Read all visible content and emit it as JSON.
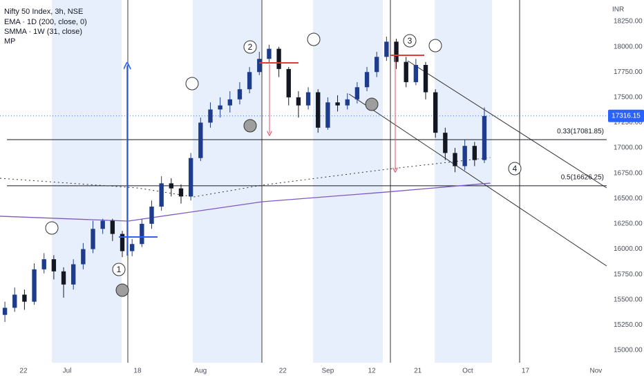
{
  "chart_data": {
    "type": "candlestick",
    "title": "Nifty 50 Index, 3h, NSE",
    "indicator": "MP",
    "y_axis_label": "INR",
    "up_color": "#1e3c8c",
    "down_color": "#131722",
    "x": [
      0.5,
      1.5,
      2.5,
      3.5,
      4.5,
      5.5,
      6.5,
      7.5,
      8.5,
      9.5,
      10.5,
      11.5,
      12.5,
      13.5,
      14.5,
      15.5,
      16.5,
      17.5,
      18.5,
      19.5,
      20.5,
      21.5,
      22.5,
      23.5,
      24.5,
      25.5,
      26.5,
      27.5,
      28.5,
      29.5,
      30.5,
      31.5,
      32.5,
      33.5,
      34.5,
      35.5,
      36.5,
      37.5,
      38.5,
      39.5,
      40.5,
      41.5,
      42.5,
      43.5,
      44.5,
      45.5,
      46.5,
      47.5,
      48.5,
      49.5
    ],
    "open": [
      15350,
      15420,
      15550,
      15480,
      15800,
      15900,
      15780,
      15650,
      15850,
      16000,
      16200,
      16280,
      16150,
      15980,
      16050,
      16250,
      16420,
      16650,
      16600,
      16520,
      16900,
      17250,
      17380,
      17420,
      17480,
      17580,
      17750,
      17880,
      17980,
      17780,
      17500,
      17420,
      17550,
      17200,
      17450,
      17420,
      17480,
      17600,
      17750,
      17900,
      18050,
      17850,
      17650,
      17820,
      17550,
      17150,
      16950,
      16820,
      17020,
      16880
    ],
    "high": [
      15480,
      15620,
      15600,
      15860,
      15960,
      15940,
      15820,
      15900,
      16060,
      16280,
      16300,
      16300,
      16180,
      16100,
      16300,
      16480,
      16720,
      16700,
      16640,
      16950,
      17300,
      17450,
      17500,
      17560,
      17650,
      17800,
      17950,
      18020,
      18000,
      17800,
      17560,
      17600,
      17580,
      17500,
      17520,
      17540,
      17650,
      17800,
      17950,
      18100,
      18080,
      17900,
      17880,
      17850,
      17580,
      17200,
      17000,
      17080,
      17060,
      17400
    ],
    "low": [
      15280,
      15380,
      15400,
      15450,
      15760,
      15700,
      15520,
      15600,
      15800,
      15960,
      16150,
      16080,
      15920,
      15930,
      16020,
      16200,
      16380,
      16520,
      16450,
      16480,
      16870,
      17200,
      17300,
      17350,
      17430,
      17540,
      17720,
      17840,
      17700,
      17420,
      17300,
      17380,
      17150,
      17180,
      17360,
      17380,
      17440,
      17560,
      17700,
      17860,
      17780,
      17600,
      17620,
      17480,
      17100,
      16880,
      16760,
      16780,
      16820,
      16850
    ],
    "close": [
      15420,
      15550,
      15480,
      15800,
      15900,
      15780,
      15650,
      15850,
      16000,
      16200,
      16280,
      16150,
      15980,
      16050,
      16250,
      16420,
      16650,
      16600,
      16520,
      16900,
      17250,
      17380,
      17420,
      17480,
      17580,
      17750,
      17880,
      17980,
      17780,
      17500,
      17420,
      17550,
      17200,
      17450,
      17420,
      17480,
      17600,
      17750,
      17900,
      18050,
      17850,
      17650,
      17820,
      17550,
      17150,
      16950,
      16820,
      17020,
      16880,
      17316.15
    ],
    "last_value": 17316.15,
    "overlays": [
      {
        "name": "EMA · 1D (200, close, 0)",
        "color": "#7e57c2",
        "style": "solid",
        "x": [
          0,
          13.1,
          26.8,
          39.5,
          50.1
        ],
        "values": [
          16325,
          16277,
          16468,
          16564,
          16652
        ]
      },
      {
        "name": "SMMA · 1W (31, close)",
        "color": "#333333",
        "style": "dotted",
        "x": [
          0,
          14.1,
          19.8,
          26.8,
          39.5,
          50.1
        ],
        "values": [
          16700,
          16604,
          16516,
          16632,
          16789,
          16905
        ]
      }
    ],
    "levels": [
      {
        "value": 17081.85,
        "label": "0.33(17081.85)"
      },
      {
        "value": 16626.25,
        "label": "0.5(16626.25)"
      }
    ],
    "markers": [
      "1",
      "2",
      "3",
      "4"
    ],
    "xlim": [
      0,
      62
    ],
    "xticks": [
      {
        "value": 2.4,
        "label": "22"
      },
      {
        "value": 6.85,
        "label": "Jul"
      },
      {
        "value": 14.05,
        "label": "18"
      },
      {
        "value": 20.5,
        "label": "Aug"
      },
      {
        "value": 28.9,
        "label": "22"
      },
      {
        "value": 33.5,
        "label": "Sep"
      },
      {
        "value": 38,
        "label": "12"
      },
      {
        "value": 42.7,
        "label": "21"
      },
      {
        "value": 47.8,
        "label": "Oct"
      },
      {
        "value": 53.7,
        "label": "17"
      },
      {
        "value": 60.9,
        "label": "Nov"
      }
    ],
    "ylim": [
      14877,
      18462
    ],
    "yticks": [
      {
        "value": 15000,
        "label": "15000.00"
      },
      {
        "value": 15250,
        "label": "15250.00"
      },
      {
        "value": 15500,
        "label": "15500.00"
      },
      {
        "value": 15750,
        "label": "15750.00"
      },
      {
        "value": 16000,
        "label": "16000.00"
      },
      {
        "value": 16250,
        "label": "16250.00"
      },
      {
        "value": 16500,
        "label": "16500.00"
      },
      {
        "value": 16750,
        "label": "16750.00"
      },
      {
        "value": 17000,
        "label": "17000.00"
      },
      {
        "value": 17250,
        "label": "17250.00"
      },
      {
        "value": 17500,
        "label": "17500.00"
      },
      {
        "value": 17750,
        "label": "17750.00"
      },
      {
        "value": 18000,
        "label": "18000.00"
      },
      {
        "value": 18250,
        "label": "18250.00"
      }
    ]
  }
}
